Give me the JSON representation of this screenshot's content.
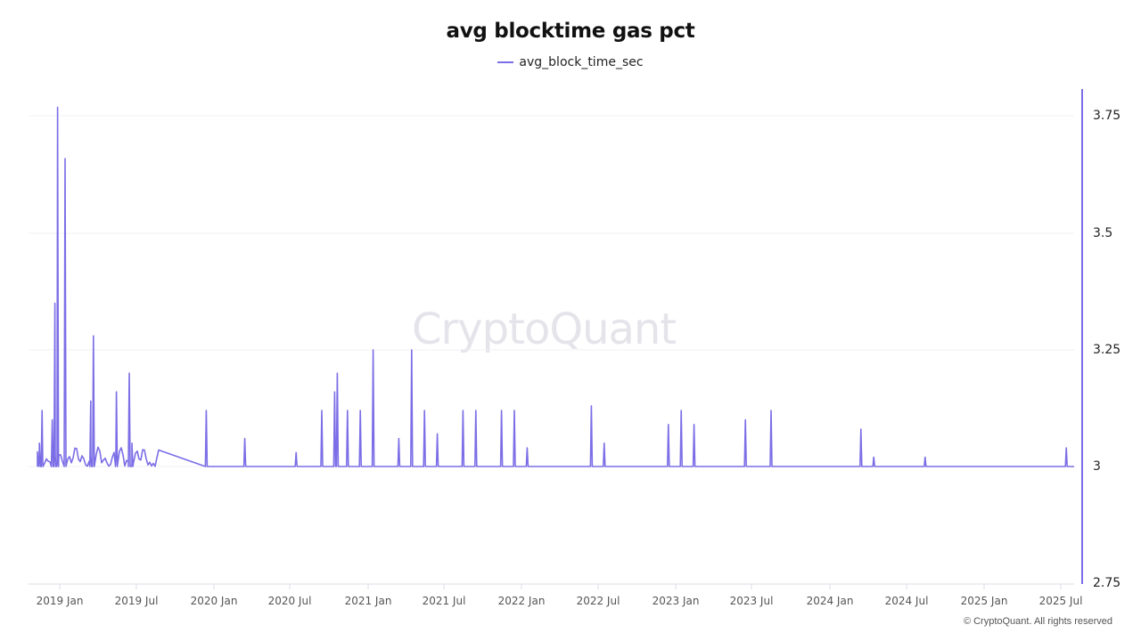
{
  "chart": {
    "title": "avg blocktime gas pct",
    "legend_label": "avg_block_time_sec",
    "watermark": "CryptoQuant",
    "copyright": "© CryptoQuant. All rights reserved",
    "line_color": "#7b6ee6"
  },
  "chart_data": {
    "type": "line",
    "title": "avg blocktime gas pct",
    "xlabel": "",
    "ylabel": "",
    "y_axis_position": "right",
    "ylim": [
      2.75,
      3.8
    ],
    "yticks": [
      "3.75",
      "3.5",
      "3.25",
      "3",
      "2.75"
    ],
    "xticks": [
      "2019 Jan",
      "2019 Jul",
      "2020 Jan",
      "2020 Jul",
      "2021 Jan",
      "2021 Jul",
      "2022 Jan",
      "2022 Jul",
      "2023 Jan",
      "2023 Jul",
      "2024 Jan",
      "2024 Jul",
      "2025 Jan",
      "2025 Jul"
    ],
    "grid": "horizontal",
    "legend_position": "top-center",
    "series": [
      {
        "name": "avg_block_time_sec",
        "baseline": 3.0,
        "note": "mostly flat at 3.0 s with spikes; values as [approx date, value]",
        "spikes": [
          [
            "2018-11",
            3.05
          ],
          [
            "2018-11",
            3.12
          ],
          [
            "2018-12",
            3.1
          ],
          [
            "2018-12",
            3.35
          ],
          [
            "2018-12",
            3.77
          ],
          [
            "2019-01",
            3.66
          ],
          [
            "2019-03",
            3.14
          ],
          [
            "2019-03",
            3.28
          ],
          [
            "2019-05",
            3.16
          ],
          [
            "2019-06",
            3.2
          ],
          [
            "2019-06",
            3.05
          ],
          [
            "2019-12",
            3.12
          ],
          [
            "2020-03",
            3.06
          ],
          [
            "2020-07",
            3.03
          ],
          [
            "2020-09",
            3.12
          ],
          [
            "2020-10",
            3.16
          ],
          [
            "2020-10",
            3.2
          ],
          [
            "2020-11",
            3.12
          ],
          [
            "2020-12",
            3.12
          ],
          [
            "2021-01",
            3.25
          ],
          [
            "2021-03",
            3.06
          ],
          [
            "2021-04",
            3.25
          ],
          [
            "2021-05",
            3.12
          ],
          [
            "2021-06",
            3.07
          ],
          [
            "2021-08",
            3.12
          ],
          [
            "2021-09",
            3.12
          ],
          [
            "2021-11",
            3.12
          ],
          [
            "2021-12",
            3.12
          ],
          [
            "2022-01",
            3.04
          ],
          [
            "2022-06",
            3.13
          ],
          [
            "2022-07",
            3.05
          ],
          [
            "2022-12",
            3.09
          ],
          [
            "2023-01",
            3.12
          ],
          [
            "2023-02",
            3.09
          ],
          [
            "2023-06",
            3.1
          ],
          [
            "2023-08",
            3.12
          ],
          [
            "2024-03",
            3.08
          ],
          [
            "2024-04",
            3.02
          ],
          [
            "2024-08",
            3.02
          ],
          [
            "2025-07",
            3.04
          ]
        ]
      }
    ]
  }
}
